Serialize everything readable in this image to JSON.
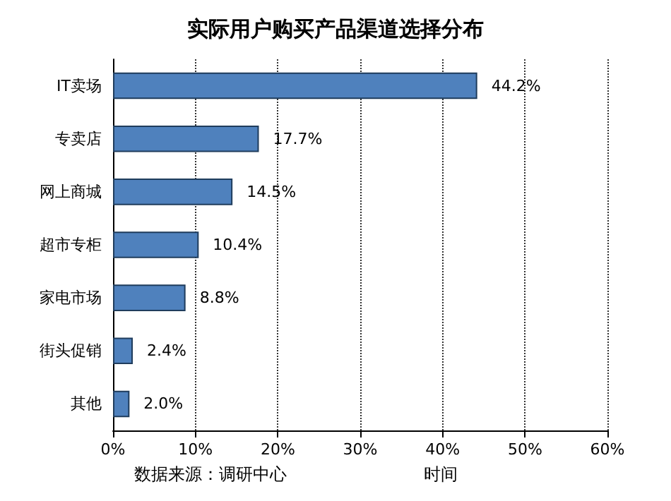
{
  "chart_data": {
    "type": "bar",
    "title": "实际用户购买产品渠道选择分布",
    "orientation": "horizontal",
    "categories": [
      "IT卖场",
      "专卖店",
      "网上商城",
      "超市专柜",
      "家电市场",
      "街头促销",
      "其他"
    ],
    "values": [
      44.2,
      17.7,
      14.5,
      10.4,
      8.8,
      2.4,
      2.0
    ],
    "value_labels": [
      "44.2%",
      "17.7%",
      "14.5%",
      "10.4%",
      "8.8%",
      "2.4%",
      "2.0%"
    ],
    "color": "#4f81bd",
    "xlim": [
      0,
      60
    ],
    "xticks": [
      {
        "value": 0,
        "label": "0%"
      },
      {
        "value": 10,
        "label": "10%"
      },
      {
        "value": 20,
        "label": "20%"
      },
      {
        "value": 30,
        "label": "30%"
      },
      {
        "value": 40,
        "label": "40%"
      },
      {
        "value": 50,
        "label": "50%"
      },
      {
        "value": 60,
        "label": "60%"
      }
    ],
    "grid": "x",
    "annotations": [
      "数据来源：调研中心",
      "时间"
    ]
  }
}
